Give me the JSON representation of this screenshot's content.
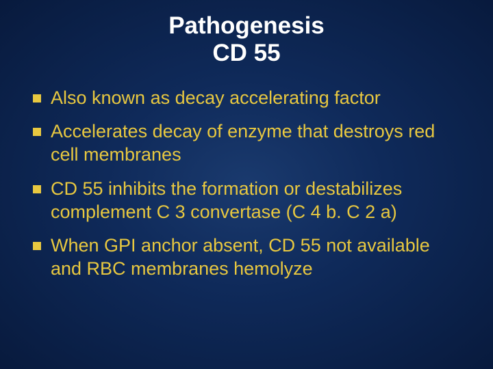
{
  "slide": {
    "title_line1": "Pathogenesis",
    "title_line2": "CD 55",
    "title_fontsize": 35,
    "title_color": "#ffffff",
    "bullets": [
      {
        "text": "Also known as decay accelerating factor"
      },
      {
        "text": "Accelerates decay of enzyme that destroys red cell membranes"
      },
      {
        "text": "CD 55 inhibits the formation or destabilizes complement C 3 convertase (C 4 b. C 2 a)"
      },
      {
        "text": "When GPI anchor absent, CD 55 not available and RBC membranes hemolyze"
      }
    ],
    "bullet_fontsize": 27,
    "bullet_color": "#e8c840",
    "bullet_marker_color": "#e8c840",
    "background": {
      "center": "#1a3a6e",
      "mid": "#0f2a5a",
      "edge": "#081a3d"
    }
  }
}
